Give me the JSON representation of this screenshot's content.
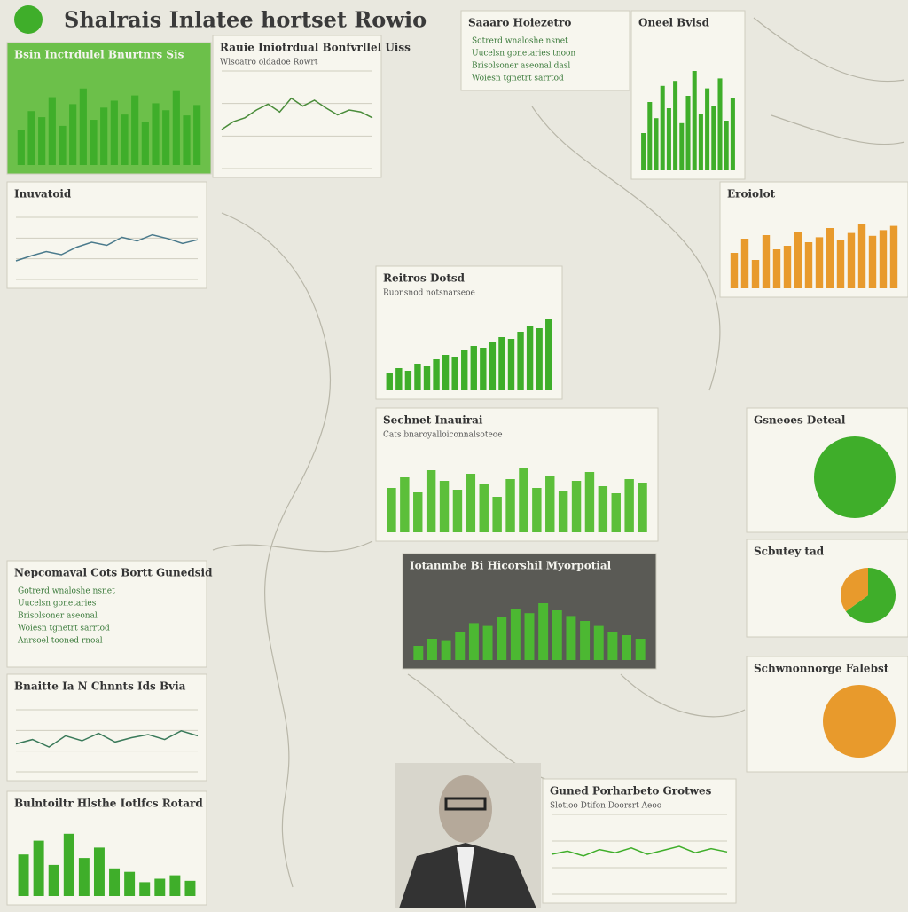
{
  "header": {
    "title": "Shalrais Inlatee hortset Rowio"
  },
  "panels": [
    {
      "type": "bar",
      "title": "Bsin Inctrdulel Bnurtnrs Sis",
      "color": "#3fae2a",
      "background": "#6cc04a",
      "ylim": [
        0,
        100
      ],
      "values": [
        40,
        62,
        55,
        78,
        45,
        70,
        88,
        52,
        66,
        74,
        58,
        80,
        49,
        71,
        63,
        85,
        57,
        69
      ]
    },
    {
      "type": "line",
      "title": "Rauie Iniotrdual Bonfvrllel Uiss",
      "subtitle": "Wlsoatro oldadoe Rowrt",
      "color": "#4a8c3a",
      "background": "#f7f6ee",
      "ylim": [
        0,
        100
      ],
      "values": [
        40,
        48,
        52,
        60,
        66,
        58,
        72,
        64,
        70,
        62,
        55,
        60,
        58,
        52
      ]
    },
    {
      "type": "list",
      "title": "Saaaro Hoiezetro",
      "background": "#f7f6ee",
      "lines": [
        "Sotrerd wnaloshe nsnet",
        "Uucelsn gonetaries tnoon",
        "Brisolsoner aseonal dasl",
        "Woiesn tgnetrt sarrtod"
      ]
    },
    {
      "type": "bar",
      "title": "Oneel Bvlsd",
      "color": "#3fae2a",
      "background": "#f7f6ee",
      "ylim": [
        0,
        100
      ],
      "values": [
        30,
        55,
        42,
        68,
        50,
        72,
        38,
        60,
        80,
        45,
        66,
        52,
        74,
        40,
        58
      ]
    },
    {
      "type": "line",
      "title": "Inuvatoid",
      "color": "#4a7a8c",
      "background": "#f7f6ee",
      "ylim": [
        0,
        100
      ],
      "values": [
        30,
        38,
        45,
        40,
        52,
        60,
        55,
        68,
        62,
        72,
        66,
        58,
        64
      ]
    },
    {
      "type": "bar",
      "title": "Reitros Dotsd",
      "subtitle": "Ruonsnod notsnarseoe",
      "color": "#3fae2a",
      "background": "#f7f6ee",
      "ylim": [
        0,
        100
      ],
      "values": [
        20,
        25,
        22,
        30,
        28,
        35,
        40,
        38,
        45,
        50,
        48,
        55,
        60,
        58,
        66,
        72,
        70,
        80
      ]
    },
    {
      "type": "bar",
      "title": "Sechnet Inauirai",
      "subtitle": "Cats bnaroyalloiconnalsoteoe",
      "color": "#5cbf3a",
      "background": "#f7f6ee",
      "ylim": [
        0,
        100
      ],
      "values": [
        50,
        62,
        45,
        70,
        58,
        48,
        66,
        54,
        40,
        60,
        72,
        50,
        64,
        46,
        58,
        68,
        52,
        44,
        60,
        56
      ]
    },
    {
      "type": "pie",
      "title": "Gsneoes Deteal",
      "background": "#f7f6ee",
      "colors": [
        "#3fae2a",
        "#e89a2c"
      ],
      "values": [
        100,
        0
      ]
    },
    {
      "type": "pie",
      "title": "Scbutey tad",
      "background": "#f7f6ee",
      "colors": [
        "#3fae2a",
        "#e89a2c"
      ],
      "values": [
        65,
        35
      ]
    },
    {
      "type": "bar",
      "title": "Iotanmbe Bi Hicorshil Myorpotial",
      "color": "#4cb832",
      "background": "#5a5a55",
      "ylim": [
        0,
        100
      ],
      "values": [
        20,
        30,
        28,
        40,
        52,
        48,
        60,
        72,
        66,
        80,
        70,
        62,
        55,
        48,
        40,
        35,
        30
      ]
    },
    {
      "type": "list",
      "title": "Nepcomaval Cots Bortt Gunedsid",
      "background": "#f7f6ee",
      "lines": [
        "Gotrerd wnaloshe nsnet",
        "Uucelsn gonetaries",
        "Brisolsoner aseonal",
        "Woiesn tgnetrt sarrtod",
        "Anrsoel tooned rnoal"
      ]
    },
    {
      "type": "line",
      "title": "Bnaitte Ia N Chnnts Ids Bvia",
      "color": "#3a7a5a",
      "background": "#f7f6ee",
      "ylim": [
        0,
        100
      ],
      "values": [
        45,
        52,
        40,
        58,
        50,
        62,
        48,
        55,
        60,
        52,
        66,
        58
      ]
    },
    {
      "type": "line",
      "title": "Guned Porharbeto Grotwes",
      "subtitle": "Slotioo Dtifon Doorsrt Aeoo",
      "color": "#3fae2a",
      "background": "#f7f6ee",
      "ylim": [
        0,
        100
      ],
      "values": [
        50,
        54,
        48,
        56,
        52,
        58,
        50,
        55,
        60,
        52,
        57,
        53
      ]
    },
    {
      "type": "bar",
      "title": "Bulntoiltr Hlsthe Iotlfcs Rotard",
      "color": "#3fae2a",
      "background": "#f7f6ee",
      "ylim": [
        0,
        100
      ],
      "values": [
        60,
        80,
        45,
        90,
        55,
        70,
        40,
        35,
        20,
        25,
        30,
        22
      ]
    },
    {
      "type": "bar",
      "title": "Eroiolot",
      "color": "#e89a2c",
      "background": "#f7f6ee",
      "ylim": [
        0,
        100
      ],
      "values": [
        50,
        70,
        40,
        75,
        55,
        60,
        80,
        65,
        72,
        85,
        68,
        78,
        90,
        74,
        82,
        88
      ]
    },
    {
      "type": "pie",
      "title": "Schwnonnorge Falebst",
      "background": "#f7f6ee",
      "colors": [
        "#e89a2c",
        "#f0b040"
      ],
      "values": [
        100,
        0
      ]
    }
  ]
}
